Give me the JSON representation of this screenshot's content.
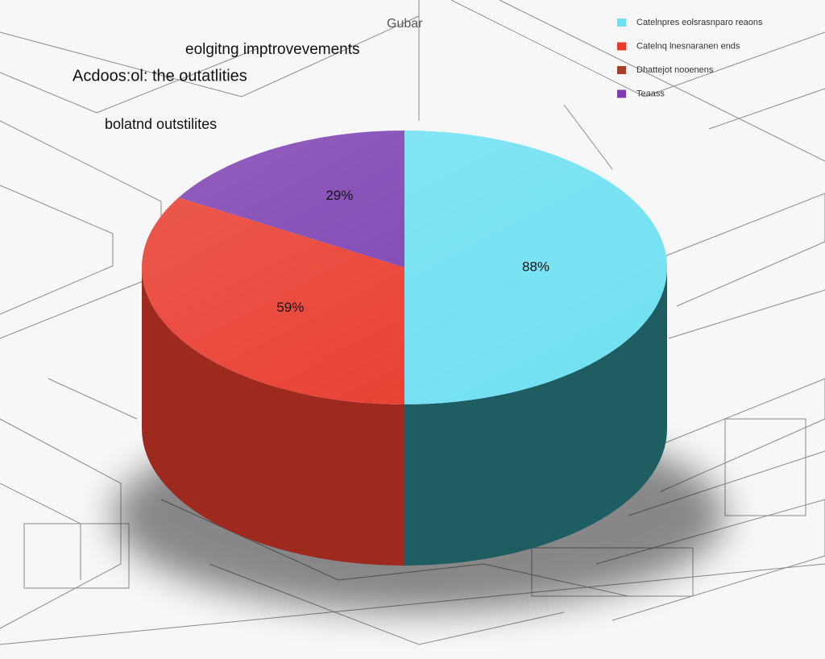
{
  "chart_data": {
    "type": "pie",
    "title": "Gubar",
    "annotations": [
      "eolgitng imptrovevements",
      "Acdoos:ol: the outatlities",
      "bolatnd outstilites"
    ],
    "categories": [
      "Catelnpres eolsrasnparo reaons",
      "Catelnq lnesnaranen ends",
      "Dhattejot nooenens",
      "Teaass"
    ],
    "values": [
      88,
      59,
      0,
      29
    ],
    "value_labels": [
      "88%",
      "59%",
      null,
      "29%"
    ],
    "colors": [
      "#6fe0f2",
      "#e8392b",
      "#a5402a",
      "#7a3db0"
    ],
    "side_colors": [
      "#1e5d62",
      "#9e2a1f",
      "#6e2a1c",
      "#4f2875"
    ],
    "legend": "top-right"
  }
}
